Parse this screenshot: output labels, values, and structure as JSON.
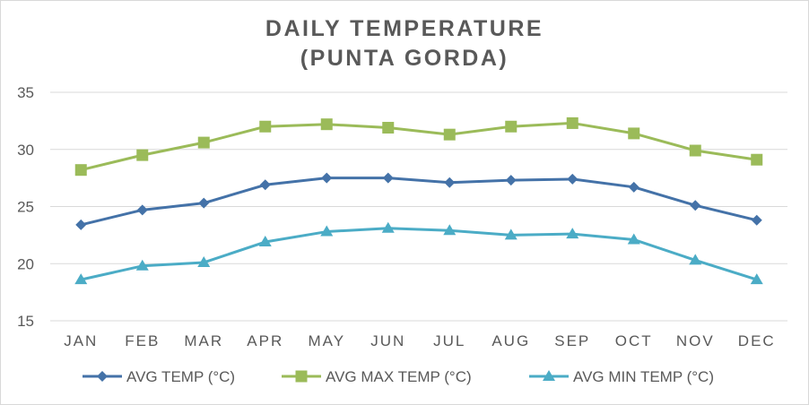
{
  "chart_data": {
    "type": "line",
    "title_lines": [
      "DAILY TEMPERATURE",
      "(PUNTA GORDA)"
    ],
    "categories": [
      "JAN",
      "FEB",
      "MAR",
      "APR",
      "MAY",
      "JUN",
      "JUL",
      "AUG",
      "SEP",
      "OCT",
      "NOV",
      "DEC"
    ],
    "ylim": [
      15,
      35
    ],
    "yticks": [
      "15",
      "20",
      "25",
      "30",
      "35"
    ],
    "grid": true,
    "legend_position": "bottom",
    "series": [
      {
        "name": "AVG TEMP (°C)",
        "color": "#4472a8",
        "marker": "diamond",
        "values": [
          23.4,
          24.7,
          25.3,
          26.9,
          27.5,
          27.5,
          27.1,
          27.3,
          27.4,
          26.7,
          25.1,
          23.8
        ]
      },
      {
        "name": "AVG MAX TEMP (°C)",
        "color": "#9bbb59",
        "marker": "square",
        "values": [
          28.2,
          29.5,
          30.6,
          32.0,
          32.2,
          31.9,
          31.3,
          32.0,
          32.3,
          31.4,
          29.9,
          29.1
        ]
      },
      {
        "name": "AVG MIN TEMP (°C)",
        "color": "#4bacc6",
        "marker": "triangle",
        "values": [
          18.6,
          19.8,
          20.1,
          21.9,
          22.8,
          23.1,
          22.9,
          22.5,
          22.6,
          22.1,
          20.3,
          18.6
        ]
      }
    ]
  }
}
